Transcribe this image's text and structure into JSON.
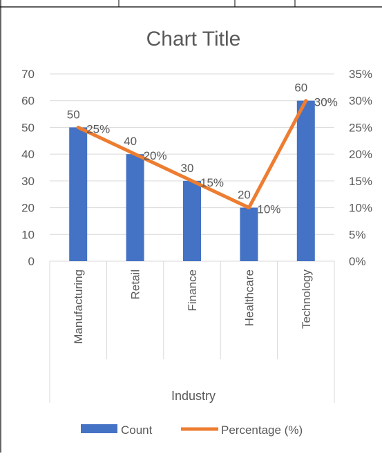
{
  "chart_data": {
    "type": "bar",
    "title": "Chart Title",
    "xlabel": "Industry",
    "categories": [
      "Manufacturing",
      "Retail",
      "Finance",
      "Healthcare",
      "Technology"
    ],
    "series": [
      {
        "name": "Count",
        "type": "bar",
        "axis": "left",
        "values": [
          50,
          40,
          30,
          20,
          60
        ],
        "labels": [
          "50",
          "40",
          "30",
          "20",
          "60"
        ],
        "color": "#4472C4"
      },
      {
        "name": "Percentage (%)",
        "type": "line",
        "axis": "right",
        "values": [
          25,
          20,
          15,
          10,
          30
        ],
        "labels": [
          "25%",
          "20%",
          "15%",
          "10%",
          "30%"
        ],
        "color": "#ED7D31"
      }
    ],
    "ylim": [
      0,
      70
    ],
    "y_ticks": [
      "0",
      "10",
      "20",
      "30",
      "40",
      "50",
      "60",
      "70"
    ],
    "y2lim": [
      0,
      35
    ],
    "y2_ticks": [
      "0%",
      "5%",
      "10%",
      "15%",
      "20%",
      "25%",
      "30%",
      "35%"
    ],
    "grid": true,
    "legend": "bottom"
  },
  "colors": {
    "grid": "#D9D9D9",
    "text": "#595959",
    "title": "#595959",
    "table_border": "#000000"
  }
}
